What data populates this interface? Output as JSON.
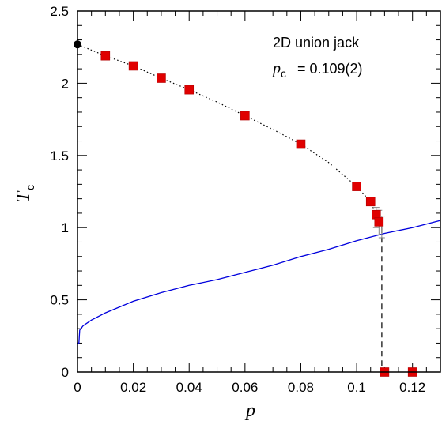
{
  "chart_data": {
    "type": "scatter",
    "xlabel": "p",
    "ylabel": "T",
    "ylabel_subscript": "c",
    "xlim": [
      0,
      0.13
    ],
    "ylim": [
      0,
      2.5
    ],
    "x_ticks": [
      0,
      0.02,
      0.04,
      0.06,
      0.08,
      0.1,
      0.12
    ],
    "x_tick_labels": [
      "0",
      "0.02",
      "0.04",
      "0.06",
      "0.08",
      "0.1",
      "0.12"
    ],
    "y_ticks": [
      0,
      0.5,
      1,
      1.5,
      2,
      2.5
    ],
    "y_tick_labels": [
      "0",
      "0.5",
      "1",
      "1.5",
      "2",
      "2.5"
    ],
    "annotation": {
      "line1": "2D union jack",
      "line2_symbol": "p",
      "line2_subscript": "c",
      "line2_value": "=  0.109(2)"
    },
    "series": [
      {
        "marker": "square",
        "color": "#e00000",
        "points": [
          {
            "x": 0.01,
            "y": 2.19
          },
          {
            "x": 0.02,
            "y": 2.12
          },
          {
            "x": 0.03,
            "y": 2.035
          },
          {
            "x": 0.04,
            "y": 1.955
          },
          {
            "x": 0.06,
            "y": 1.775
          },
          {
            "x": 0.08,
            "y": 1.578
          },
          {
            "x": 0.1,
            "y": 1.285
          },
          {
            "x": 0.105,
            "y": 1.18
          },
          {
            "x": 0.107,
            "y": 1.09
          },
          {
            "x": 0.108,
            "y": 1.04
          },
          {
            "x": 0.11,
            "y": 0.0
          },
          {
            "x": 0.12,
            "y": 0.0
          }
        ],
        "error_bars": [
          {
            "x": 0.107,
            "y_low": 1.0,
            "y_high": 1.14
          },
          {
            "x": 0.108,
            "y_low": 0.95,
            "y_high": 1.12
          },
          {
            "x": 0.109,
            "y_low": 0.93,
            "y_high": 1.08
          }
        ]
      },
      {
        "marker": "circle",
        "color": "#000000",
        "points": [
          {
            "x": 0.0,
            "y": 2.269
          }
        ]
      },
      {
        "type": "line",
        "style": "dotted",
        "color": "#000000",
        "points": [
          {
            "x": 0.0,
            "y": 2.269
          },
          {
            "x": 0.01,
            "y": 2.19
          },
          {
            "x": 0.02,
            "y": 2.12
          },
          {
            "x": 0.03,
            "y": 2.035
          },
          {
            "x": 0.04,
            "y": 1.955
          },
          {
            "x": 0.05,
            "y": 1.87
          },
          {
            "x": 0.06,
            "y": 1.775
          },
          {
            "x": 0.07,
            "y": 1.68
          },
          {
            "x": 0.08,
            "y": 1.578
          },
          {
            "x": 0.09,
            "y": 1.45
          },
          {
            "x": 0.1,
            "y": 1.285
          },
          {
            "x": 0.105,
            "y": 1.18
          },
          {
            "x": 0.109,
            "y": 1.0
          }
        ]
      },
      {
        "type": "line",
        "style": "dashed",
        "color": "#000000",
        "points": [
          {
            "x": 0.109,
            "y": 1.0
          },
          {
            "x": 0.109,
            "y": 0.0
          }
        ]
      },
      {
        "type": "line",
        "style": "solid",
        "color": "#0000dd",
        "points": [
          {
            "x": 0.0,
            "y": 0.2
          },
          {
            "x": 0.0005,
            "y": 0.2
          },
          {
            "x": 0.0008,
            "y": 0.29
          },
          {
            "x": 0.002,
            "y": 0.32
          },
          {
            "x": 0.005,
            "y": 0.36
          },
          {
            "x": 0.01,
            "y": 0.41
          },
          {
            "x": 0.02,
            "y": 0.49
          },
          {
            "x": 0.03,
            "y": 0.55
          },
          {
            "x": 0.04,
            "y": 0.6
          },
          {
            "x": 0.05,
            "y": 0.64
          },
          {
            "x": 0.06,
            "y": 0.69
          },
          {
            "x": 0.07,
            "y": 0.74
          },
          {
            "x": 0.08,
            "y": 0.8
          },
          {
            "x": 0.09,
            "y": 0.85
          },
          {
            "x": 0.1,
            "y": 0.91
          },
          {
            "x": 0.11,
            "y": 0.96
          },
          {
            "x": 0.12,
            "y": 1.0
          },
          {
            "x": 0.13,
            "y": 1.05
          }
        ]
      }
    ]
  }
}
